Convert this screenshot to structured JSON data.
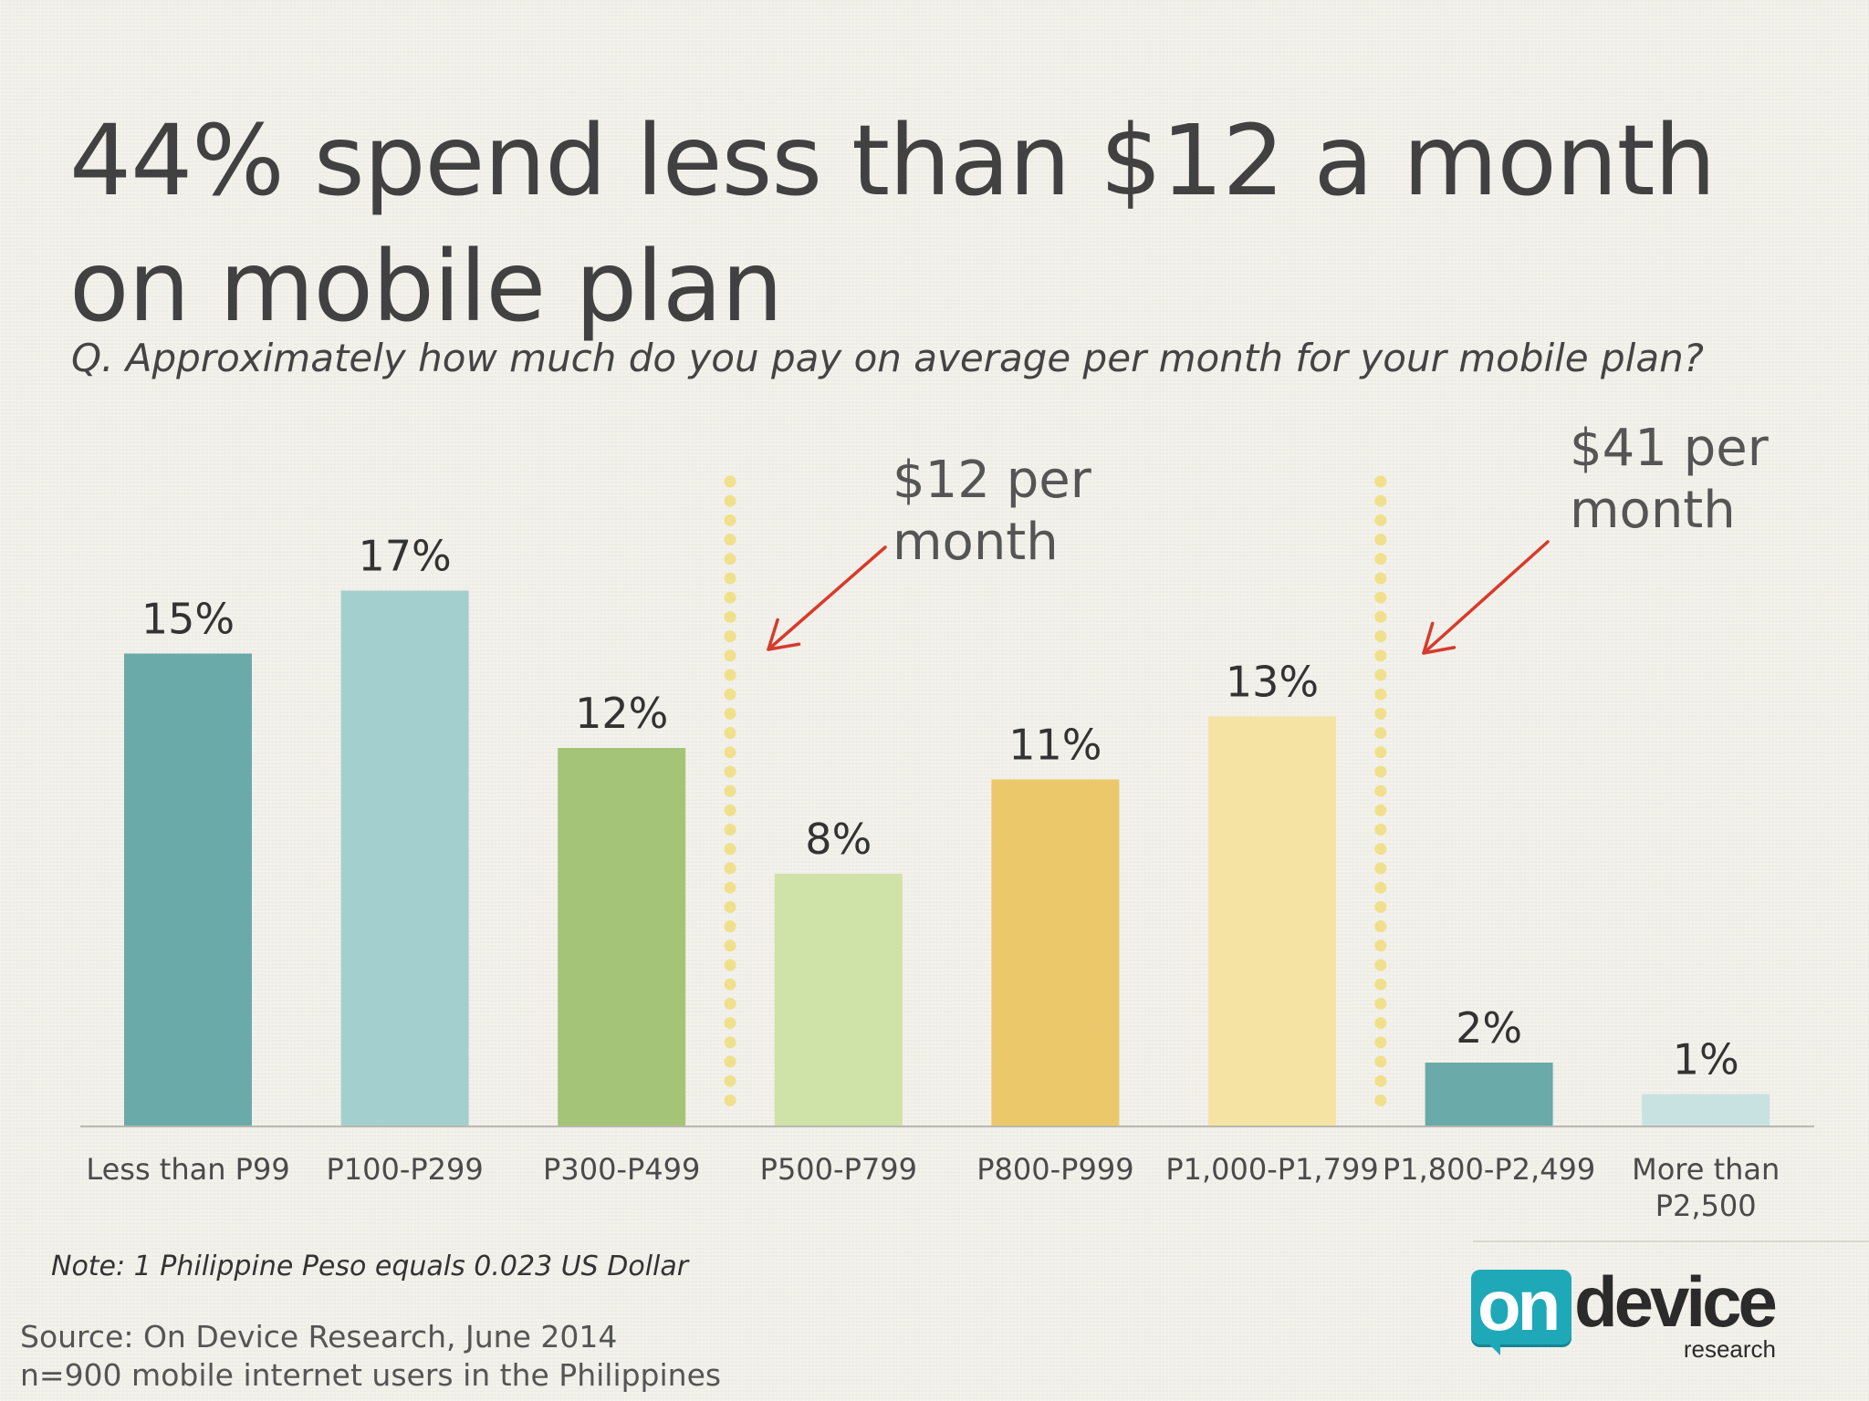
{
  "title": "44% spend less than $12 a month on mobile plan",
  "question": "Q. Approximately how much do you pay on average per month for your mobile plan?",
  "chart_data": {
    "type": "bar",
    "categories": [
      [
        "Less than P99"
      ],
      [
        "P100-P299"
      ],
      [
        "P300-P499"
      ],
      [
        "P500-P799"
      ],
      [
        "P800-P999"
      ],
      [
        "P1,000-P1,799"
      ],
      [
        "P1,800-P2,499"
      ],
      [
        "More than",
        "P2,500"
      ]
    ],
    "values": [
      15,
      17,
      12,
      8,
      11,
      13,
      2,
      1
    ],
    "value_labels": [
      "15%",
      "17%",
      "12%",
      "8%",
      "11%",
      "13%",
      "2%",
      "1%"
    ],
    "colors": [
      "#6aaaa9",
      "#a4cfcf",
      "#a4c477",
      "#cfe2a8",
      "#ebc96b",
      "#f4e3a3",
      "#6aaaa9",
      "#c8e2e1"
    ],
    "ylabel": "",
    "ylim": [
      0,
      17
    ],
    "annotations": [
      {
        "text": [
          "$12 per",
          "month"
        ],
        "divider_after_index": 2
      },
      {
        "text": [
          "$41 per",
          "month"
        ],
        "divider_after_index": 5
      }
    ]
  },
  "note": "Note: 1 Philippine Peso equals 0.023 US Dollar",
  "source": {
    "line1": "Source: On Device Research, June 2014",
    "line2": "n=900 mobile internet users in the Philippines"
  },
  "logo": {
    "on": "on",
    "device": "device",
    "research": "research"
  },
  "colors": {
    "background": "#f3f1ea",
    "text": "#414141",
    "divider_dots": "#f0e08c",
    "arrow": "#d63b2c",
    "logo_accent": "#1fa9b8"
  }
}
